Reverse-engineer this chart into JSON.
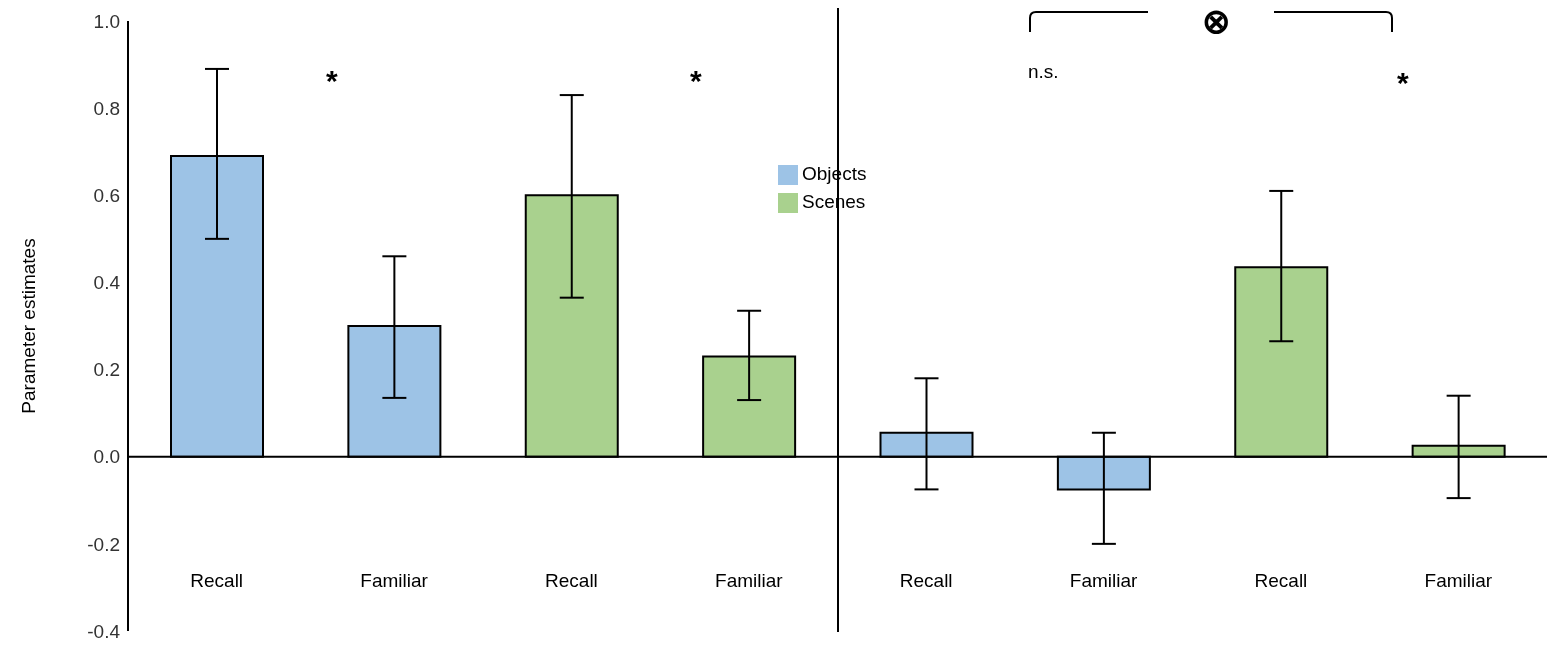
{
  "chart_data": {
    "type": "bar",
    "ylabel": "Parameter estimates",
    "categories": [
      "Recall",
      "Familiar",
      "Recall",
      "Familiar",
      "Recall",
      "Familiar",
      "Recall",
      "Familiar"
    ],
    "series": [
      {
        "name": "Objects",
        "color": "#9dc3e6",
        "values": [
          0.69,
          0.3,
          null,
          null,
          0.055,
          -0.075,
          null,
          null
        ],
        "errors": [
          [
            0.5,
            0.89
          ],
          [
            0.135,
            0.46
          ],
          null,
          null,
          [
            -0.075,
            0.18
          ],
          [
            -0.2,
            0.055
          ],
          null,
          null
        ]
      },
      {
        "name": "Scenes",
        "color": "#a9d18e",
        "values": [
          null,
          null,
          0.6,
          0.23,
          null,
          null,
          0.435,
          0.025
        ],
        "errors": [
          null,
          null,
          [
            0.365,
            0.83
          ],
          [
            0.13,
            0.335
          ],
          null,
          null,
          [
            0.265,
            0.61
          ],
          [
            -0.095,
            0.14
          ]
        ]
      }
    ],
    "ylim": [
      -0.4,
      1.0
    ],
    "yticks": [
      {
        "value": -0.4,
        "label": "-0.4"
      },
      {
        "value": -0.2,
        "label": "-0.2"
      },
      {
        "value": 0,
        "label": "0.0"
      },
      {
        "value": 0.2,
        "label": "0.2"
      },
      {
        "value": 0.4,
        "label": "0.4"
      },
      {
        "value": 0.6,
        "label": "0.6"
      },
      {
        "value": 0.8,
        "label": "0.8"
      },
      {
        "value": 1.0,
        "label": "1.0"
      }
    ],
    "legend": "top",
    "annotations": [
      "*",
      "*",
      "n.s.",
      "*",
      "⊗"
    ]
  }
}
